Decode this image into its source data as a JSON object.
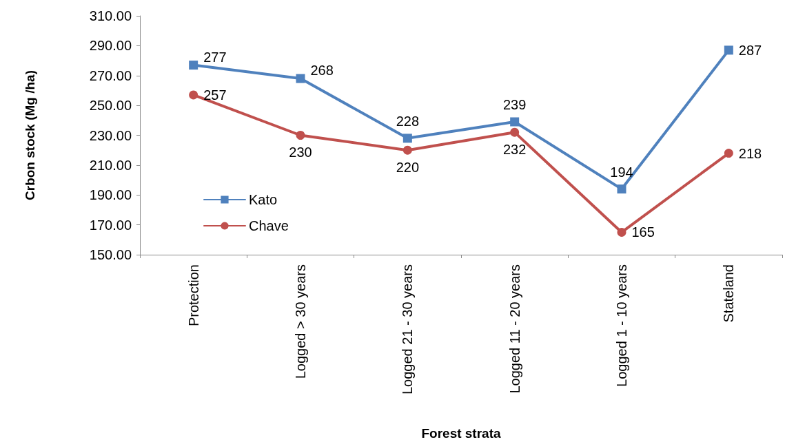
{
  "chart_data": {
    "type": "line",
    "xlabel": "Forest strata",
    "ylabel": "Crbon stock (Mg /ha)",
    "categories": [
      "Protection",
      "Logged > 30 years",
      "Logged 21 - 30 years",
      "Logged 11 - 20 years",
      "Logged 1 - 10 years",
      "Stateland"
    ],
    "series": [
      {
        "name": "Kato",
        "color": "#4f81bd",
        "marker": "square",
        "values": [
          277,
          268,
          228,
          239,
          194,
          287
        ]
      },
      {
        "name": "Chave",
        "color": "#c0504d",
        "marker": "circle",
        "values": [
          257,
          230,
          220,
          232,
          165,
          218
        ]
      }
    ],
    "ylim": [
      150,
      310
    ],
    "yticks": [
      {
        "value": 150,
        "label": "150.00"
      },
      {
        "value": 170,
        "label": "170.00"
      },
      {
        "value": 190,
        "label": "190.00"
      },
      {
        "value": 210,
        "label": "210.00"
      },
      {
        "value": 230,
        "label": "230.00"
      },
      {
        "value": 250,
        "label": "250.00"
      },
      {
        "value": 270,
        "label": "270.00"
      },
      {
        "value": 290,
        "label": "290.00"
      },
      {
        "value": 310,
        "label": "310.00"
      }
    ],
    "grid": false,
    "legend": "left",
    "data_labels": true,
    "line_style": "solid"
  }
}
